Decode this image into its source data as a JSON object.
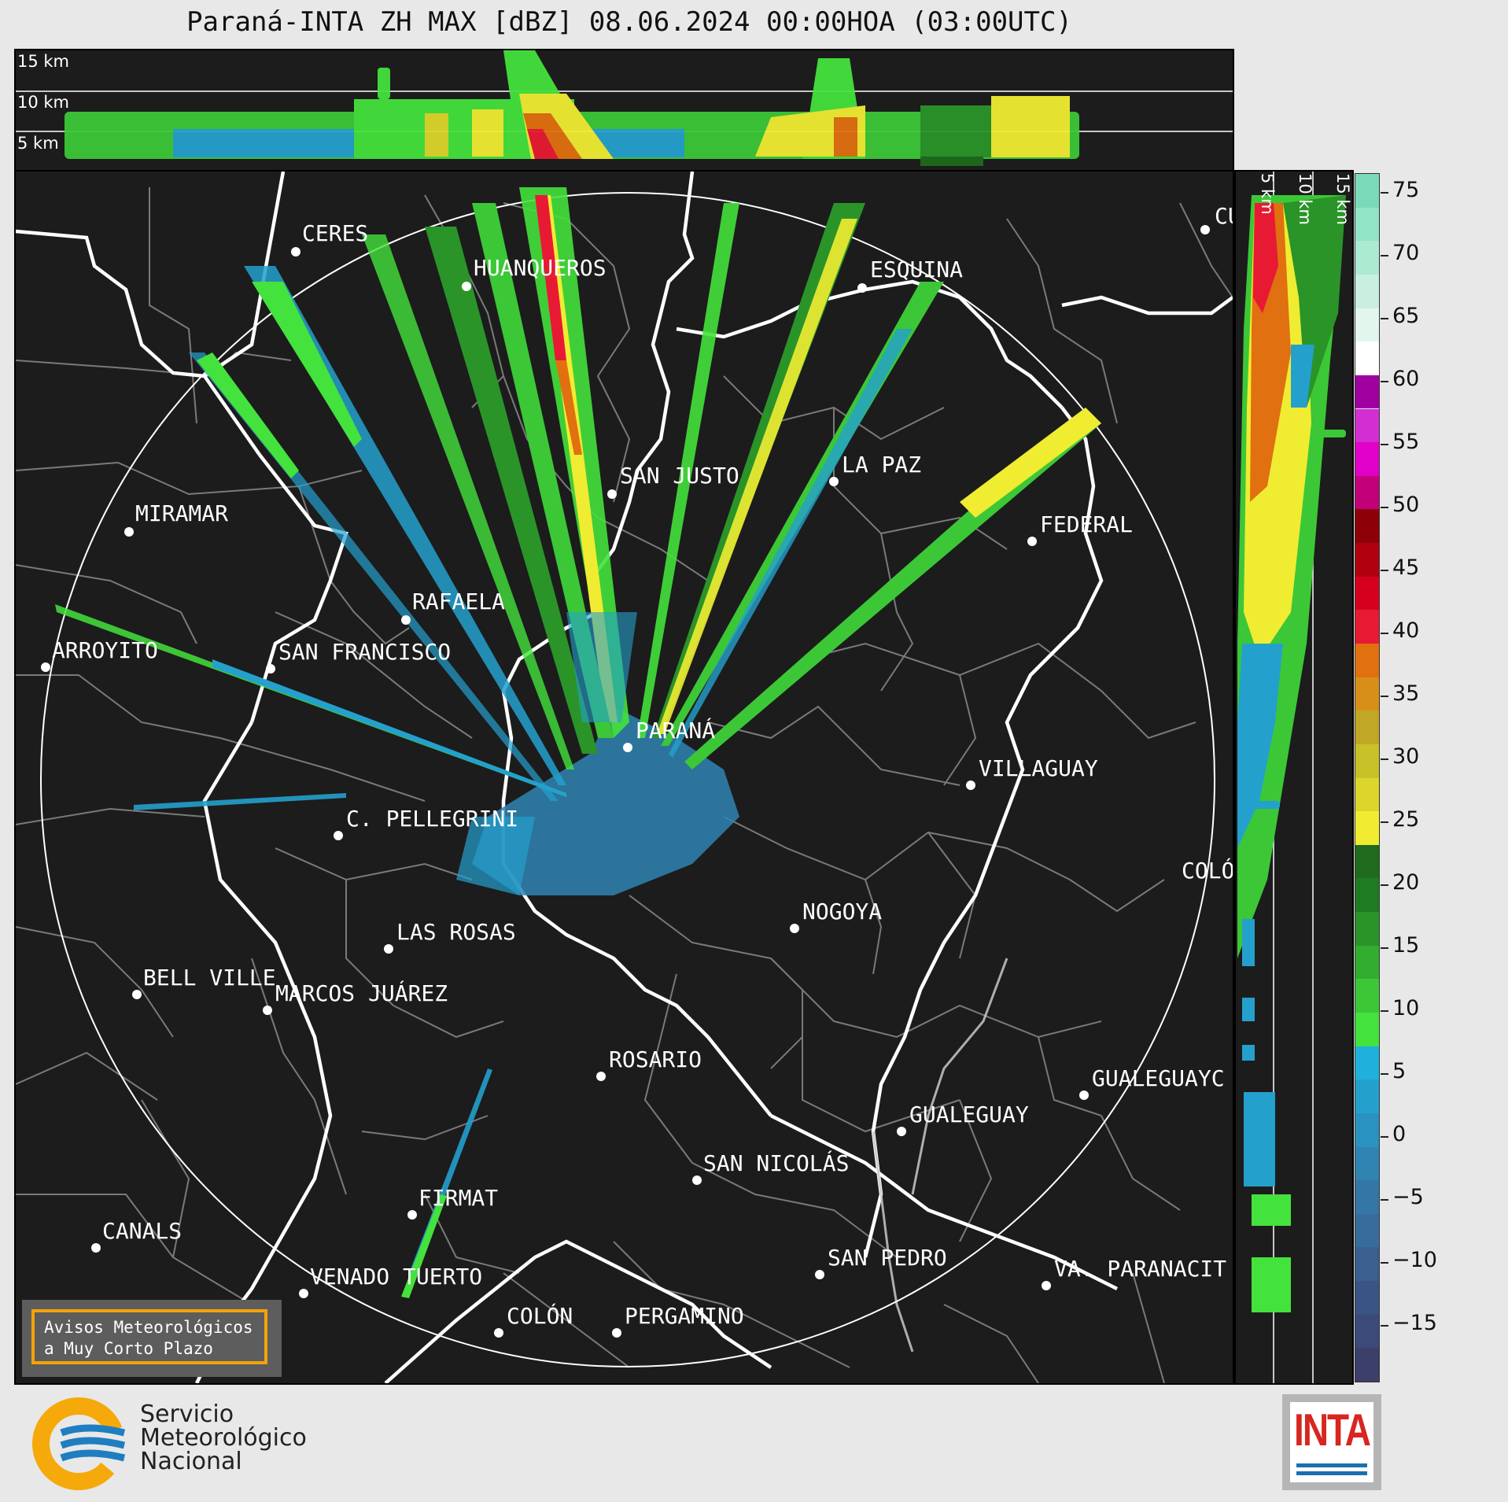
{
  "title": "Paraná-INTA ZH MAX [dBZ] 08.06.2024 00:00HOA (03:00UTC)",
  "top_panel": {
    "height_labels": [
      "15 km",
      "10 km",
      "5 km"
    ]
  },
  "side_panel": {
    "height_labels": [
      "5 km",
      "10 km",
      "15 km"
    ]
  },
  "cities": [
    {
      "name": "CERES"
    },
    {
      "name": "HUANQUEROS"
    },
    {
      "name": "ESQUINA"
    },
    {
      "name": "CU"
    },
    {
      "name": "LA PAZ"
    },
    {
      "name": "SAN JUSTO"
    },
    {
      "name": "MIRAMAR"
    },
    {
      "name": "FEDERAL"
    },
    {
      "name": "RAFAELA"
    },
    {
      "name": "ARROYITO"
    },
    {
      "name": "SAN FRANCISCO"
    },
    {
      "name": "PARANÁ"
    },
    {
      "name": "VILLAGUAY"
    },
    {
      "name": "C. PELLEGRINI"
    },
    {
      "name": "COLÓ"
    },
    {
      "name": "NOGOYA"
    },
    {
      "name": "LAS ROSAS"
    },
    {
      "name": "BELL VILLE"
    },
    {
      "name": "MARCOS JUÁREZ"
    },
    {
      "name": "ROSARIO"
    },
    {
      "name": "GUALEGUAYC"
    },
    {
      "name": "GUALEGUAY"
    },
    {
      "name": "SAN NICOLÁS"
    },
    {
      "name": "FIRMAT"
    },
    {
      "name": "CANALS"
    },
    {
      "name": "SAN PEDRO"
    },
    {
      "name": "VA. PARANACIT"
    },
    {
      "name": "VENADO TUERTO"
    },
    {
      "name": "COLÓN"
    },
    {
      "name": "PERGAMINO"
    }
  ],
  "colorbar": {
    "ticks": [
      "75",
      "70",
      "65",
      "60",
      "55",
      "50",
      "45",
      "40",
      "35",
      "30",
      "25",
      "20",
      "15",
      "10",
      "5",
      "0",
      "−5",
      "−10",
      "−15"
    ],
    "range": [
      -20,
      76
    ],
    "colors": [
      "#3b3f6a",
      "#3b4a78",
      "#3a5585",
      "#3a6090",
      "#386c9b",
      "#3477a6",
      "#2f84b2",
      "#2a92c0",
      "#24a0cd",
      "#1fb0dc",
      "#44e23c",
      "#3cc737",
      "#32ad30",
      "#2a9429",
      "#1f7b21",
      "#1f6a1d",
      "#f0ec32",
      "#dcd62c",
      "#c8c128",
      "#c0a826",
      "#d88f1a",
      "#e07010",
      "#e81a33",
      "#d6001e",
      "#b00010",
      "#8e0008",
      "#c2007a",
      "#e000c8",
      "#d22ed2",
      "#a000a0",
      "#ffffff",
      "#e2f6ee",
      "#c8efe0",
      "#acead2",
      "#92e4c6",
      "#7ad9b8"
    ]
  },
  "warning_box": {
    "line1": "Avisos Meteorológicos",
    "line2": "a Muy Corto Plazo"
  },
  "smn_logo": {
    "line1": "Servicio",
    "line2": "Meteorológico",
    "line3": "Nacional"
  },
  "inta_logo": {
    "text": "INTA"
  }
}
